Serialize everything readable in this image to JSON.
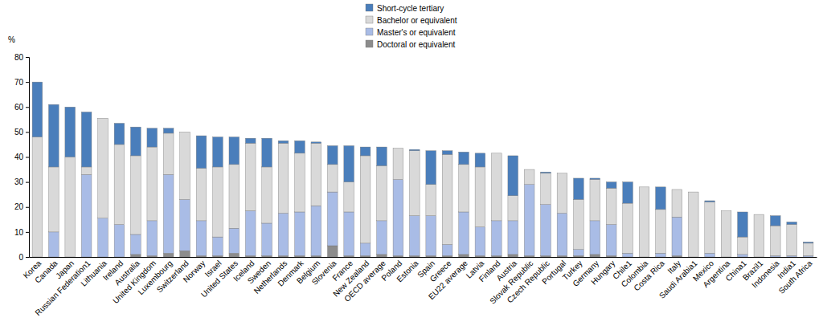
{
  "chart_data": {
    "type": "bar",
    "stacked": true,
    "grid": false,
    "y_label": "%",
    "categories": [
      "Korea",
      "Canada",
      "Japan",
      "Russian Federation1",
      "Lithuania",
      "Ireland",
      "Australia",
      "United Kingdom",
      "Luxembourg",
      "Switzerland",
      "Norway",
      "Israel",
      "United States",
      "Iceland",
      "Sweden",
      "Netherlands",
      "Denmark",
      "Belgium",
      "Slovenia",
      "France",
      "New Zealand",
      "OECD average",
      "Poland",
      "Estonia",
      "Spain",
      "Greece",
      "EU22 average",
      "Latvia",
      "Finland",
      "Austria",
      "Slovak Republic",
      "Czech Republic",
      "Portugal",
      "Turkey",
      "Germany",
      "Hungary",
      "Chile1",
      "Colombia",
      "Costa Rica",
      "Italy",
      "Saudi Arabia1",
      "Mexico",
      "Argentina",
      "China1",
      "Brazil1",
      "Indonesia",
      "India1",
      "South Africa"
    ],
    "series": [
      {
        "name": "Doctoral or equivalent",
        "color": "#8c8c8c",
        "values": [
          0,
          0,
          0,
          0,
          0,
          0,
          1,
          0.5,
          1.5,
          2.5,
          0.5,
          0.5,
          1.5,
          0.5,
          0.5,
          0.5,
          0.5,
          0.5,
          4.5,
          0.5,
          0.5,
          1,
          0.5,
          0.5,
          0.5,
          0.5,
          1,
          0.5,
          0.5,
          1,
          0.5,
          0.5,
          0.5,
          0.5,
          1,
          0.5,
          0,
          0,
          0,
          0.5,
          0,
          0,
          0,
          0,
          0,
          0,
          0,
          0
        ]
      },
      {
        "name": "Master's or equivalent",
        "color": "#a9bce6",
        "values": [
          0,
          10,
          0,
          33,
          15.5,
          13,
          8,
          14,
          31.5,
          20.5,
          14,
          7.5,
          10,
          18,
          13,
          17,
          17.5,
          20,
          21.5,
          17.5,
          5,
          13.5,
          30.5,
          16,
          16,
          4.5,
          17,
          11.5,
          14,
          13.5,
          28.5,
          20.5,
          17,
          2.5,
          13.5,
          12.5,
          1.5,
          0,
          1.5,
          15.5,
          0,
          1.5,
          0,
          1,
          0,
          0.5,
          0.5,
          0.5
        ]
      },
      {
        "name": "Bachelor or equivalent",
        "color": "#d9d9d9",
        "values": [
          48,
          26,
          40,
          3,
          40,
          32,
          31.5,
          29.5,
          16.5,
          27,
          21,
          28,
          25.5,
          27,
          22.5,
          28,
          23.5,
          25,
          11,
          12,
          35,
          22,
          12.5,
          26,
          12.5,
          36,
          19,
          24,
          27,
          10,
          6,
          12.5,
          16,
          20,
          16.5,
          14.5,
          20,
          28,
          17.5,
          11,
          26,
          20.5,
          18.5,
          7,
          17,
          12,
          12.5,
          5
        ]
      },
      {
        "name": "Short-cycle tertiary",
        "color": "#4a7ebb",
        "values": [
          22,
          25,
          20,
          22,
          0,
          8.5,
          11.5,
          7.5,
          2,
          0,
          13,
          12,
          11,
          2,
          11.5,
          1,
          5,
          0.5,
          7.5,
          14.5,
          3.5,
          7.5,
          0,
          0.5,
          13.5,
          1.5,
          5,
          5.5,
          0,
          16,
          0,
          0.5,
          0,
          8.5,
          0.5,
          2.5,
          8.5,
          0,
          9,
          0,
          0,
          0.5,
          0,
          10,
          0,
          4,
          1,
          0.5
        ]
      }
    ],
    "ylim": [
      0,
      80
    ],
    "yticks": [
      0,
      10,
      20,
      30,
      40,
      50,
      60,
      70,
      80
    ]
  }
}
